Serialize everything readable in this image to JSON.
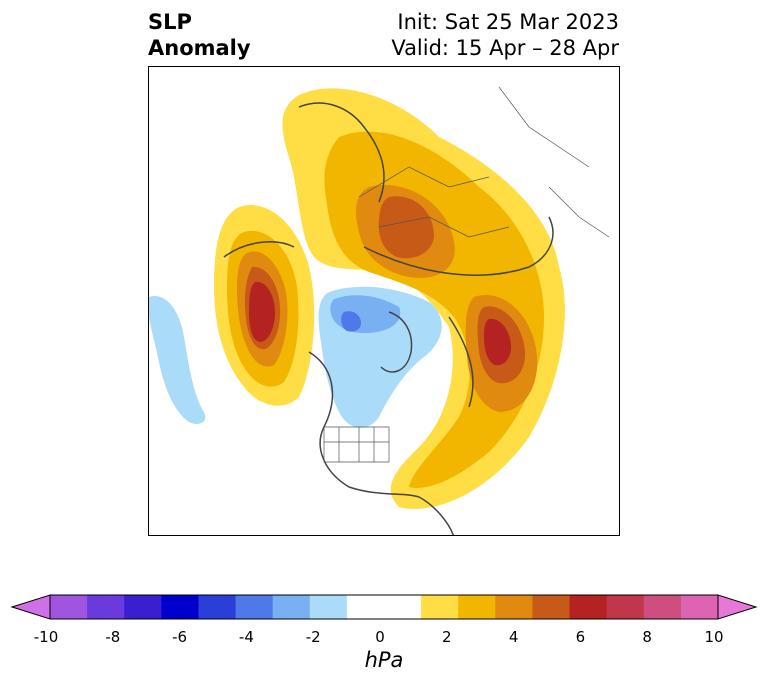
{
  "header": {
    "title_line1": "SLP",
    "title_line2": "Anomaly",
    "init": "Init: Sat 25 Mar 2023",
    "valid": "Valid: 15 Apr – 28 Apr"
  },
  "map": {
    "projection": "north-polar-stereographic",
    "field": "SLP anomaly"
  },
  "colorbar": {
    "unit": "hPa",
    "ticks": [
      "-10",
      "-8",
      "-6",
      "-4",
      "-2",
      "0",
      "2",
      "4",
      "6",
      "8",
      "10"
    ],
    "colors": [
      "#d070e8",
      "#a055e0",
      "#6a3adc",
      "#3a1fd0",
      "#0000cc",
      "#2a3ed8",
      "#4f78e8",
      "#78b0f2",
      "#aadcfa",
      "#ffffff",
      "#ffffff",
      "#ffdd44",
      "#f2b500",
      "#e08a10",
      "#c85a18",
      "#b42222",
      "#c0364a",
      "#ce4e80",
      "#dc64b0",
      "#e878d8"
    ]
  }
}
